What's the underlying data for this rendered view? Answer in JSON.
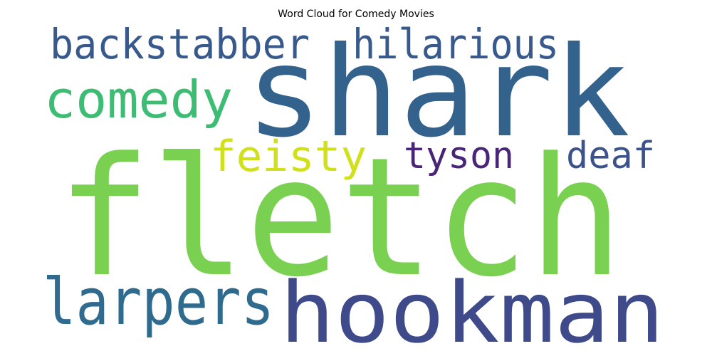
{
  "chart_data": {
    "type": "wordcloud",
    "title": "Word Cloud for Comedy Movies",
    "background": "#ffffff",
    "words": [
      {
        "text": "fletch",
        "rank": 1,
        "color": "#7ad151"
      },
      {
        "text": "shark",
        "rank": 2,
        "color": "#33638d"
      },
      {
        "text": "hookman",
        "rank": 3,
        "color": "#3f4a8a"
      },
      {
        "text": "larpers",
        "rank": 4,
        "color": "#2f6b8e"
      },
      {
        "text": "comedy",
        "rank": 5,
        "color": "#3dbc74"
      },
      {
        "text": "backstabber",
        "rank": 6,
        "color": "#38598c"
      },
      {
        "text": "hilarious",
        "rank": 7,
        "color": "#38598c"
      },
      {
        "text": "feisty",
        "rank": 8,
        "color": "#d0e11c"
      },
      {
        "text": "deaf",
        "rank": 9,
        "color": "#3b528b"
      },
      {
        "text": "tyson",
        "rank": 10,
        "color": "#482576"
      }
    ]
  }
}
